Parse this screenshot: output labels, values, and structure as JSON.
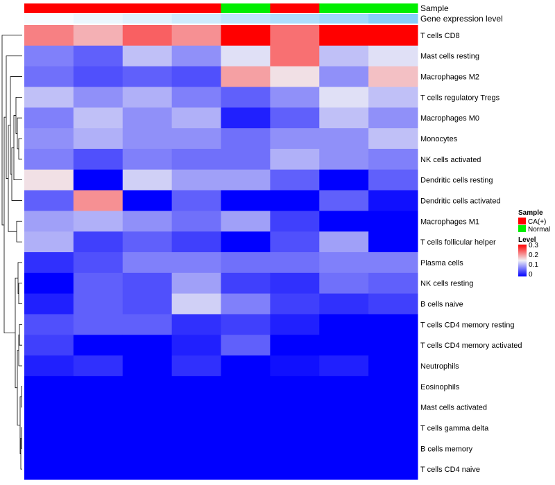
{
  "chart_data": {
    "type": "heatmap",
    "annotation_tracks": [
      "Sample",
      "Gene expression level"
    ],
    "samples": [
      {
        "group": "CA(+)",
        "expr": 0.02
      },
      {
        "group": "CA(+)",
        "expr": 0.05
      },
      {
        "group": "CA(+)",
        "expr": 0.08
      },
      {
        "group": "CA(+)",
        "expr": 0.12
      },
      {
        "group": "Normal",
        "expr": 0.16
      },
      {
        "group": "CA(+)",
        "expr": 0.2
      },
      {
        "group": "Normal",
        "expr": 0.24
      },
      {
        "group": "Normal",
        "expr": 0.3
      }
    ],
    "rows": [
      "T cells CD8",
      "Mast cells resting",
      "Macrophages M2",
      "T cells regulatory  Tregs",
      "Macrophages M0",
      "Monocytes",
      "NK cells activated",
      "Dendritic cells resting",
      "Dendritic cells activated",
      "Macrophages M1",
      "T cells follicular helper",
      "Plasma cells",
      "NK cells resting",
      "B cells naive",
      "T cells CD4 memory resting",
      "T cells CD4 memory activated",
      "Neutrophils",
      "Eosinophils",
      "Mast cells activated",
      "T cells gamma delta",
      "B cells memory",
      "T cells CD4 naive"
    ],
    "values": [
      [
        0.22,
        0.19,
        0.24,
        0.21,
        0.3,
        0.23,
        0.3,
        0.3
      ],
      [
        0.08,
        0.06,
        0.12,
        0.09,
        0.14,
        0.23,
        0.12,
        0.14
      ],
      [
        0.07,
        0.05,
        0.06,
        0.05,
        0.2,
        0.16,
        0.09,
        0.18
      ],
      [
        0.12,
        0.09,
        0.11,
        0.08,
        0.06,
        0.09,
        0.14,
        0.12
      ],
      [
        0.08,
        0.12,
        0.09,
        0.11,
        0.02,
        0.06,
        0.12,
        0.09
      ],
      [
        0.09,
        0.11,
        0.09,
        0.09,
        0.07,
        0.09,
        0.09,
        0.12
      ],
      [
        0.08,
        0.05,
        0.08,
        0.07,
        0.07,
        0.11,
        0.09,
        0.08
      ],
      [
        0.16,
        0.0,
        0.13,
        0.1,
        0.1,
        0.06,
        0.0,
        0.06
      ],
      [
        0.06,
        0.21,
        0.0,
        0.06,
        0.0,
        0.0,
        0.06,
        0.01
      ],
      [
        0.1,
        0.11,
        0.09,
        0.07,
        0.1,
        0.04,
        0.0,
        0.0
      ],
      [
        0.11,
        0.04,
        0.06,
        0.04,
        0.0,
        0.05,
        0.1,
        0.0
      ],
      [
        0.03,
        0.05,
        0.08,
        0.08,
        0.07,
        0.07,
        0.08,
        0.08
      ],
      [
        0.0,
        0.06,
        0.05,
        0.1,
        0.04,
        0.03,
        0.07,
        0.06
      ],
      [
        0.02,
        0.06,
        0.05,
        0.13,
        0.08,
        0.04,
        0.03,
        0.04
      ],
      [
        0.05,
        0.06,
        0.06,
        0.03,
        0.04,
        0.02,
        0.0,
        0.0
      ],
      [
        0.04,
        0.0,
        0.0,
        0.02,
        0.06,
        0.0,
        0.0,
        0.0
      ],
      [
        0.02,
        0.03,
        0.0,
        0.03,
        0.0,
        0.01,
        0.02,
        0.0
      ],
      [
        0.0,
        0.0,
        0.0,
        0.0,
        0.0,
        0.0,
        0.0,
        0.0
      ],
      [
        0.0,
        0.0,
        0.0,
        0.0,
        0.0,
        0.0,
        0.0,
        0.0
      ],
      [
        0.0,
        0.0,
        0.0,
        0.0,
        0.0,
        0.0,
        0.0,
        0.0
      ],
      [
        0.0,
        0.0,
        0.0,
        0.0,
        0.0,
        0.0,
        0.0,
        0.0
      ],
      [
        0.0,
        0.0,
        0.0,
        0.0,
        0.0,
        0.0,
        0.0,
        0.0
      ]
    ],
    "scale": {
      "min": 0,
      "mid": 0.15,
      "max": 0.3,
      "ticks": [
        "0.3",
        "0.2",
        "0.1",
        "0"
      ]
    },
    "colors": {
      "low": "#0000ff",
      "mid": "#f0f0f5",
      "high": "#ff0000"
    },
    "group_colors": {
      "CA(+)": "#ff0000",
      "Normal": "#00ee00"
    },
    "expr_colors": {
      "low": "#ffffff",
      "high": "#87cefa"
    },
    "legend": {
      "sample_title": "Sample",
      "sample_entries": [
        "CA(+)",
        "Normal"
      ],
      "level_title": "Level",
      "placement": "right"
    }
  }
}
